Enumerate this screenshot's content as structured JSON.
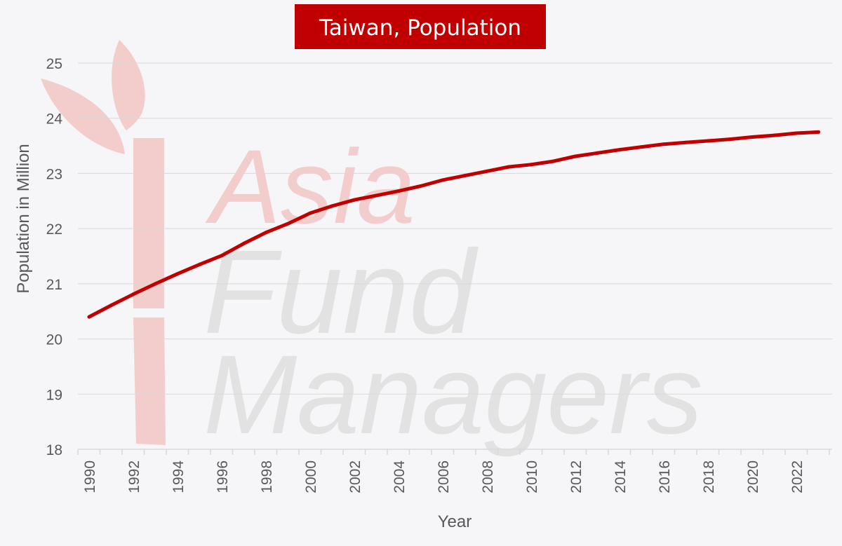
{
  "colors": {
    "background": "#f6f5f8",
    "title_bg": "#c00000",
    "line": "#c00000",
    "gridline": "#d9d9d9",
    "axis_text": "#595959",
    "watermark_red": "#f3cccc",
    "watermark_grey": "#e2e2e2"
  },
  "watermark": {
    "line1": "Asia",
    "line2": "Fund",
    "line3": "Managers",
    "logo": "bamboo-stalk-with-leaves"
  },
  "chart_data": {
    "type": "line",
    "title": "Taiwan, Population",
    "xlabel": "Year",
    "ylabel": "Population in Million",
    "x": [
      1990,
      1991,
      1992,
      1993,
      1994,
      1995,
      1996,
      1997,
      1998,
      1999,
      2000,
      2001,
      2002,
      2003,
      2004,
      2005,
      2006,
      2007,
      2008,
      2009,
      2010,
      2011,
      2012,
      2013,
      2014,
      2015,
      2016,
      2017,
      2018,
      2019,
      2020,
      2021,
      2022,
      2023
    ],
    "series": [
      {
        "name": "",
        "values": [
          20.4,
          20.61,
          20.81,
          21.0,
          21.18,
          21.35,
          21.51,
          21.73,
          21.93,
          22.09,
          22.28,
          22.41,
          22.52,
          22.6,
          22.68,
          22.77,
          22.88,
          22.96,
          23.04,
          23.12,
          23.16,
          23.22,
          23.31,
          23.37,
          23.43,
          23.48,
          23.53,
          23.56,
          23.59,
          23.62,
          23.66,
          23.69,
          23.73,
          23.75
        ]
      }
    ],
    "ylim": [
      18,
      25
    ],
    "yticks": [
      "18",
      "19",
      "20",
      "21",
      "22",
      "23",
      "24",
      "25"
    ],
    "xticks": [
      "1990",
      "1992",
      "1994",
      "1996",
      "1998",
      "2000",
      "2002",
      "2004",
      "2006",
      "2008",
      "2010",
      "2012",
      "2014",
      "2016",
      "2018",
      "2020",
      "2022"
    ],
    "grid": true,
    "legend": "none"
  }
}
